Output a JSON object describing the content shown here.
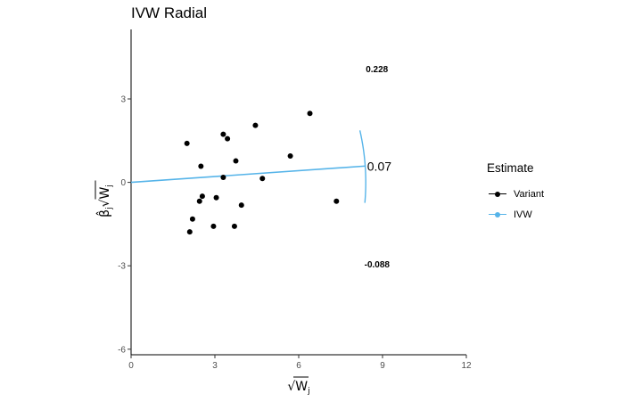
{
  "chart_data": {
    "type": "scatter",
    "title": "IVW Radial",
    "xlabel": "√W",
    "xlabel_sub": "j",
    "ylabel": "β̂",
    "ylabel_sub": "j",
    "ylabel_root": "√W",
    "ylabel_root_sub": "j",
    "xlim": [
      0,
      12
    ],
    "ylim": [
      -6.2,
      5.5
    ],
    "x_ticks": [
      0,
      3,
      6,
      9,
      12
    ],
    "y_ticks": [
      -6,
      -3,
      0,
      3
    ],
    "grid": false,
    "points": [
      {
        "x": 2.0,
        "y": 1.4
      },
      {
        "x": 2.1,
        "y": -1.78
      },
      {
        "x": 2.2,
        "y": -1.32
      },
      {
        "x": 2.45,
        "y": -0.68
      },
      {
        "x": 2.5,
        "y": 0.58
      },
      {
        "x": 2.55,
        "y": -0.5
      },
      {
        "x": 2.95,
        "y": -1.58
      },
      {
        "x": 3.05,
        "y": -0.55
      },
      {
        "x": 3.3,
        "y": 1.73
      },
      {
        "x": 3.3,
        "y": 0.18
      },
      {
        "x": 3.45,
        "y": 1.57
      },
      {
        "x": 3.7,
        "y": -1.58
      },
      {
        "x": 3.75,
        "y": 0.77
      },
      {
        "x": 3.95,
        "y": -0.82
      },
      {
        "x": 4.45,
        "y": 2.05
      },
      {
        "x": 4.7,
        "y": 0.14
      },
      {
        "x": 5.7,
        "y": 0.95
      },
      {
        "x": 6.4,
        "y": 2.48
      },
      {
        "x": 7.35,
        "y": -0.68
      }
    ],
    "ivw": {
      "slope": 0.07,
      "x_end": 8.4
    },
    "arc": {
      "radius": 8.4,
      "upper_slope": 0.228,
      "lower_slope": -0.088
    },
    "annotations": [
      {
        "text": "0.228",
        "x": 8.4,
        "y": 4.08
      },
      {
        "text": "0.07",
        "x": 8.45,
        "y": 0.58
      },
      {
        "text": "-0.088",
        "x": 8.35,
        "y": -2.95
      }
    ],
    "legend": {
      "title": "Estimate",
      "position": "right",
      "items": [
        {
          "label": "Variant",
          "color": "#000000"
        },
        {
          "label": "IVW",
          "color": "#56B4E9"
        }
      ]
    }
  }
}
